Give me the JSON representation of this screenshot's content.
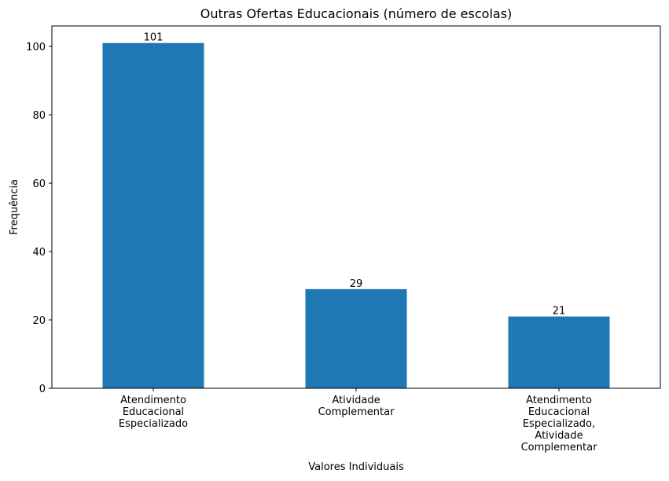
{
  "chart_data": {
    "type": "bar",
    "title": "Outras Ofertas Educacionais (número de escolas)",
    "xlabel": "Valores Individuais",
    "ylabel": "Frequência",
    "categories": [
      [
        "Atendimento",
        "Educacional",
        "Especializado"
      ],
      [
        "Atividade",
        "Complementar"
      ],
      [
        "Atendimento",
        "Educacional",
        "Especializado,",
        "Atividade",
        "Complementar"
      ]
    ],
    "values": [
      101,
      29,
      21
    ],
    "data_labels": [
      "101",
      "29",
      "21"
    ],
    "ylim": [
      0,
      106
    ],
    "yticks": [
      0,
      20,
      40,
      60,
      80,
      100
    ],
    "ytick_labels": [
      "0",
      "20",
      "40",
      "60",
      "80",
      "100"
    ],
    "bar_color": "#1f77b4",
    "grid": false,
    "legend": "none"
  }
}
